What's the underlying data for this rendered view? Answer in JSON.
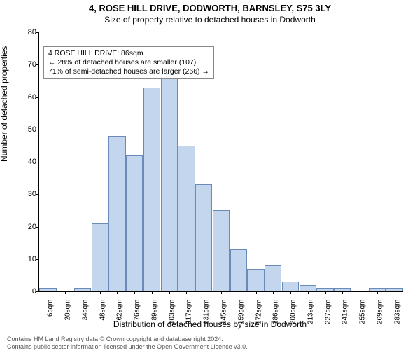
{
  "title_main": "4, ROSE HILL DRIVE, DODWORTH, BARNSLEY, S75 3LY",
  "title_sub": "Size of property relative to detached houses in Dodworth",
  "ylabel": "Number of detached properties",
  "xlabel": "Distribution of detached houses by size in Dodworth",
  "chart": {
    "type": "histogram",
    "ylim": [
      0,
      80
    ],
    "ytick_step": 10,
    "bin_width_label_suffix": "sqm",
    "categories": [
      6,
      20,
      34,
      48,
      62,
      76,
      89,
      103,
      117,
      131,
      145,
      159,
      172,
      186,
      200,
      213,
      227,
      241,
      255,
      269,
      283
    ],
    "values": [
      1,
      0,
      1,
      21,
      48,
      42,
      63,
      67,
      45,
      33,
      25,
      13,
      7,
      8,
      3,
      2,
      1,
      1,
      0,
      1,
      1
    ],
    "bar_fill": "#c4d6ee",
    "bar_stroke": "#6a8bb8",
    "background_color": "#ffffff",
    "reference_x": 86,
    "reference_color": "#cc0000"
  },
  "info_box": {
    "line1": "4 ROSE HILL DRIVE: 86sqm",
    "line2": "← 28% of detached houses are smaller (107)",
    "line3": "71% of semi-detached houses are larger (266) →"
  },
  "footer": {
    "line1": "Contains HM Land Registry data © Crown copyright and database right 2024.",
    "line2": "Contains public sector information licensed under the Open Government Licence v3.0."
  },
  "fonts": {
    "title_main_size": 13,
    "title_sub_size": 12,
    "axis_label_size": 12,
    "tick_size": 11,
    "info_size": 10.5,
    "footer_size": 9
  }
}
